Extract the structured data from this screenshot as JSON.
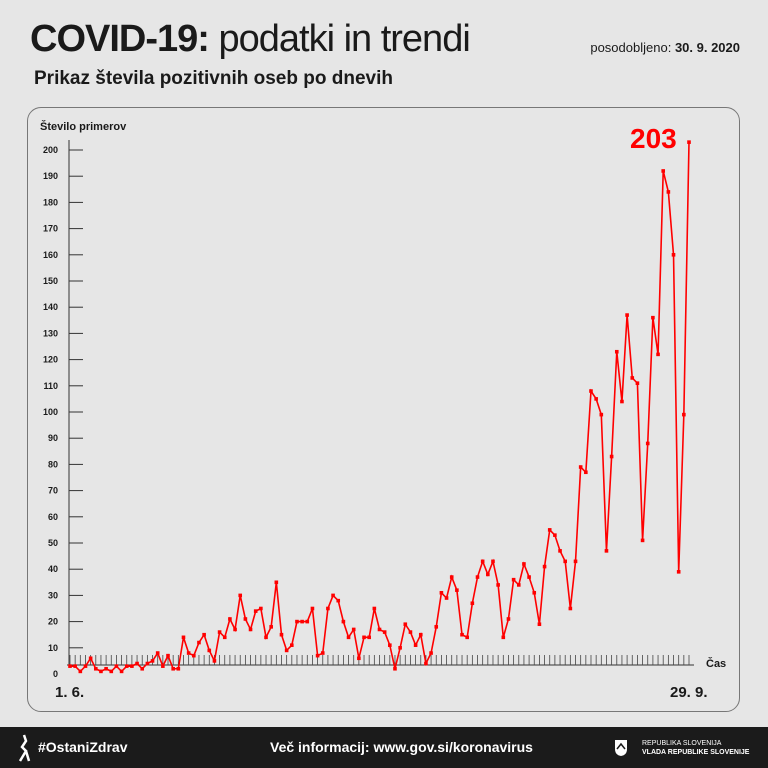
{
  "header": {
    "title_bold": "COVID-19:",
    "title_light": "podatki in trendi",
    "updated_label": "posodobljeno:",
    "updated_date": "30. 9. 2020",
    "subtitle": "Prikaz števila pozitivnih oseb po dnevih"
  },
  "chart_data": {
    "type": "line",
    "ylabel": "Število primerov",
    "xlabel": "Čas",
    "x_start_label": "1. 6.",
    "x_end_label": "29. 9.",
    "ylim": [
      0,
      200
    ],
    "yticks": [
      0,
      10,
      20,
      30,
      40,
      50,
      60,
      70,
      80,
      90,
      100,
      110,
      120,
      130,
      140,
      150,
      160,
      170,
      180,
      190,
      200
    ],
    "annotation": "203",
    "color": "#ff0000",
    "values": [
      3,
      3,
      1,
      3,
      6,
      2,
      1,
      2,
      1,
      3,
      1,
      3,
      3,
      4,
      2,
      4,
      5,
      8,
      3,
      7,
      2,
      2,
      14,
      8,
      7,
      12,
      15,
      9,
      5,
      16,
      14,
      21,
      17,
      30,
      21,
      17,
      24,
      25,
      14,
      18,
      35,
      15,
      9,
      11,
      20,
      20,
      20,
      25,
      7,
      8,
      25,
      30,
      28,
      20,
      14,
      17,
      6,
      14,
      14,
      25,
      17,
      16,
      11,
      2,
      10,
      19,
      16,
      11,
      15,
      4,
      8,
      18,
      31,
      29,
      37,
      32,
      15,
      14,
      27,
      37,
      43,
      38,
      43,
      34,
      14,
      21,
      36,
      34,
      42,
      37,
      31,
      19,
      41,
      55,
      53,
      47,
      43,
      25,
      43,
      79,
      77,
      108,
      105,
      99,
      47,
      83,
      123,
      104,
      137,
      113,
      111,
      51,
      88,
      136,
      122,
      192,
      184,
      160,
      39,
      99,
      203
    ]
  },
  "footer": {
    "hashtag": "#OstaniZdrav",
    "info": "Več informacij: www.gov.si/koronavirus",
    "gov_line1": "REPUBLIKA SLOVENIJA",
    "gov_line2": "VLADA REPUBLIKE SLOVENIJE"
  }
}
